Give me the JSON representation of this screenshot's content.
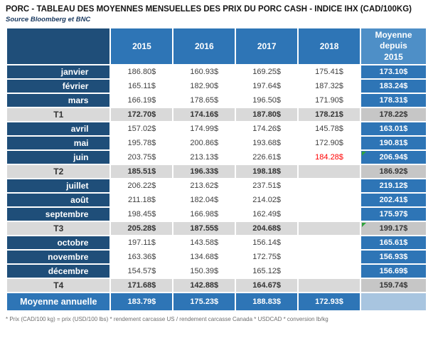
{
  "title": "PORC - TABLEAU DES MOYENNES MENSUELLES DES PRIX DU PORC CASH - INDICE IHX (CAD/100KG)",
  "source": "Source Bloomberg et BNC",
  "footnote": "* Prix (CAD/100 kg) = prix (USD/100 lbs) * rendement carcasse US / rendement carcasse Canada * USDCAD * conversion lb/kg",
  "colors": {
    "navy": "#1F4E79",
    "blue": "#2E75B6",
    "light_blue_header": "#4E8FC7",
    "quarter_gray": "#D9D9D9",
    "quarter_avg_gray": "#C6C6C6",
    "annual_empty_cell": "#A8C5E0",
    "red_value": "#FF0000",
    "green_flag": "#2FA33C"
  },
  "chart_data": {
    "type": "table",
    "title": "PORC - TABLEAU DES MOYENNES MENSUELLES DES PRIX DU PORC CASH - INDICE IHX (CAD/100KG)",
    "unit": "CAD/100KG",
    "columns": [
      "2015",
      "2016",
      "2017",
      "2018"
    ],
    "average_column": "Moyenne depuis 2015",
    "avg_header_lines": [
      "Moyenne",
      "depuis",
      "2015"
    ],
    "rows": [
      {
        "label": "janvier",
        "kind": "month",
        "values": [
          186.8,
          160.93,
          169.25,
          175.41
        ],
        "avg": 173.1
      },
      {
        "label": "février",
        "kind": "month",
        "values": [
          165.11,
          182.9,
          197.64,
          187.32
        ],
        "avg": 183.24
      },
      {
        "label": "mars",
        "kind": "month",
        "values": [
          166.19,
          178.65,
          196.5,
          171.9
        ],
        "avg": 178.31
      },
      {
        "label": "T1",
        "kind": "quarter",
        "values": [
          172.7,
          174.16,
          187.8,
          178.21
        ],
        "avg": 178.22
      },
      {
        "label": "avril",
        "kind": "month",
        "values": [
          157.02,
          174.99,
          174.26,
          145.78
        ],
        "avg": 163.01
      },
      {
        "label": "mai",
        "kind": "month",
        "values": [
          195.78,
          200.86,
          193.68,
          172.9
        ],
        "avg": 190.81
      },
      {
        "label": "juin",
        "kind": "month",
        "values": [
          203.75,
          213.13,
          226.61,
          184.28
        ],
        "avg": 206.94,
        "red_value_index": 3,
        "avg_flag": true
      },
      {
        "label": "T2",
        "kind": "quarter",
        "values": [
          185.51,
          196.33,
          198.18,
          null
        ],
        "avg": 186.92
      },
      {
        "label": "juillet",
        "kind": "month",
        "values": [
          206.22,
          213.62,
          237.51,
          null
        ],
        "avg": 219.12
      },
      {
        "label": "août",
        "kind": "month",
        "values": [
          211.18,
          182.04,
          214.02,
          null
        ],
        "avg": 202.41
      },
      {
        "label": "septembre",
        "kind": "month",
        "values": [
          198.45,
          166.98,
          162.49,
          null
        ],
        "avg": 175.97
      },
      {
        "label": "T3",
        "kind": "quarter",
        "values": [
          205.28,
          187.55,
          204.68,
          null
        ],
        "avg": 199.17,
        "avg_flag": true
      },
      {
        "label": "octobre",
        "kind": "month",
        "values": [
          197.11,
          143.58,
          156.14,
          null
        ],
        "avg": 165.61
      },
      {
        "label": "novembre",
        "kind": "month",
        "values": [
          163.36,
          134.68,
          172.75,
          null
        ],
        "avg": 156.93
      },
      {
        "label": "décembre",
        "kind": "month",
        "values": [
          154.57,
          150.39,
          165.12,
          null
        ],
        "avg": 156.69
      },
      {
        "label": "T4",
        "kind": "quarter",
        "values": [
          171.68,
          142.88,
          164.67,
          null
        ],
        "avg": 159.74
      },
      {
        "label": "Moyenne annuelle",
        "kind": "annual",
        "values": [
          183.79,
          175.23,
          188.83,
          172.93
        ],
        "avg": null
      }
    ]
  }
}
